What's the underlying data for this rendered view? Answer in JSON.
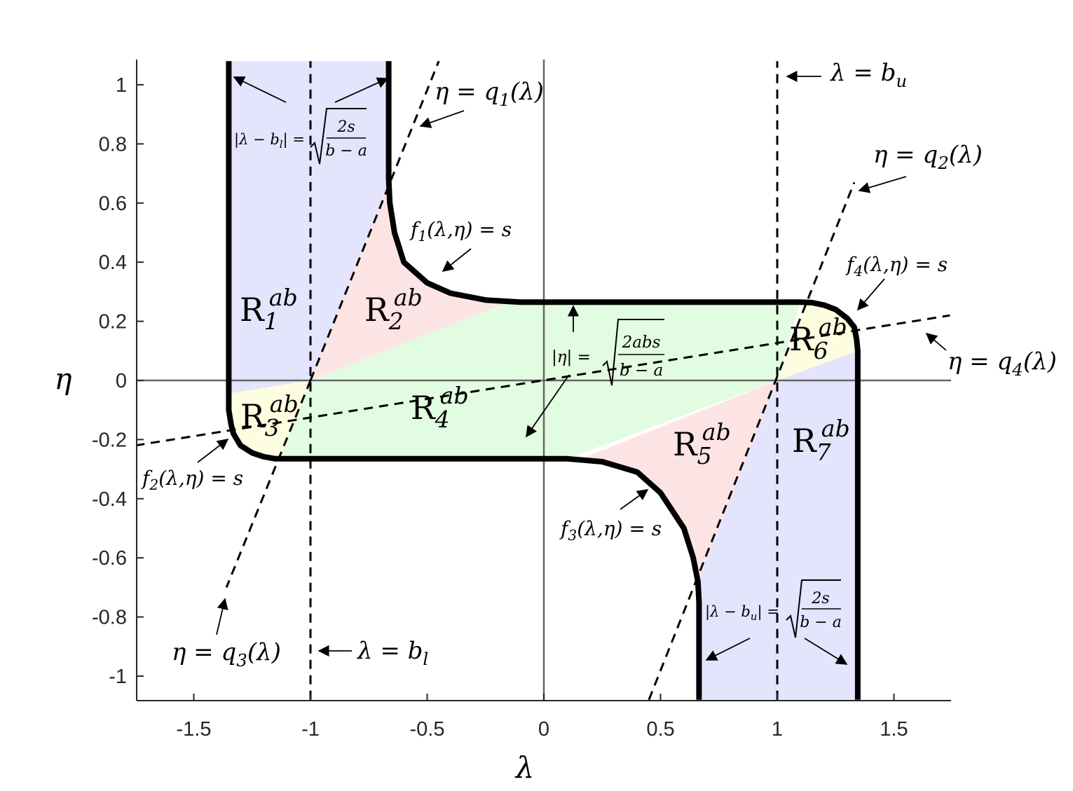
{
  "chart_data": {
    "type": "line",
    "xlabel": "λ",
    "ylabel": "η",
    "xlim": [
      -1.75,
      1.75
    ],
    "ylim": [
      -1.08,
      1.08
    ],
    "x_ticks": [
      "-1.5",
      "-1",
      "-0.5",
      "0",
      "0.5",
      "1",
      "1.5"
    ],
    "y_ticks": [
      "1",
      "0.8",
      "0.6",
      "0.4",
      "0.2",
      "0",
      "-0.2",
      "-0.4",
      "-0.6",
      "-0.8",
      "-1"
    ],
    "x_tick_values": [
      -1.5,
      -1,
      -0.5,
      0,
      0.5,
      1,
      1.5
    ],
    "y_tick_values": [
      1,
      0.8,
      0.6,
      0.4,
      0.2,
      0,
      -0.2,
      -0.4,
      -0.6,
      -0.8,
      -1
    ],
    "parameters": {
      "b_l": -1,
      "b_u": 1,
      "eta_level": 0.265,
      "half_width": 0.335
    },
    "boundary_upper": {
      "x": [
        -1.35,
        -1.35,
        -1.35,
        -1.34,
        -1.33,
        -1.3,
        -1.25,
        -1.2,
        -1.15,
        -0.4,
        -0.2,
        0.1,
        0.25,
        0.4,
        0.5,
        0.6,
        0.64,
        0.66,
        0.665,
        0.665
      ],
      "y": [
        1.08,
        0.0,
        -0.1,
        -0.15,
        -0.18,
        -0.22,
        -0.245,
        -0.258,
        -0.265,
        -0.265,
        -0.265,
        -0.265,
        -0.275,
        -0.31,
        -0.38,
        -0.5,
        -0.6,
        -0.68,
        -0.75,
        -1.08
      ]
    },
    "boundary_lower": {
      "x": [
        -0.665,
        -0.665,
        -0.66,
        -0.64,
        -0.6,
        -0.5,
        -0.4,
        -0.25,
        -0.1,
        1.1,
        1.15,
        1.2,
        1.25,
        1.3,
        1.33,
        1.34,
        1.345,
        1.345
      ],
      "y": [
        1.08,
        0.68,
        0.6,
        0.5,
        0.4,
        0.33,
        0.295,
        0.272,
        0.265,
        0.265,
        0.263,
        0.255,
        0.24,
        0.21,
        0.18,
        0.14,
        0.1,
        -1.08
      ]
    },
    "lines": [
      {
        "name": "η = q1(λ)",
        "x": [
          -1,
          -0.45
        ],
        "y": [
          0,
          1.08
        ]
      },
      {
        "name": "η = q3(λ)",
        "x": [
          -1,
          -1.36
        ],
        "y": [
          0,
          -0.7
        ]
      },
      {
        "name": "η = q2(λ)",
        "x": [
          0.45,
          1.33
        ],
        "y": [
          -1.08,
          0.67
        ]
      },
      {
        "name": "η = q4(λ)",
        "x": [
          -1.75,
          1.74
        ],
        "y": [
          -0.22,
          0.22
        ]
      },
      {
        "name": "λ = b_l",
        "x": [
          -1,
          -1
        ],
        "y": [
          -1.08,
          1.08
        ]
      },
      {
        "name": "λ = b_u",
        "x": [
          1,
          1
        ],
        "y": [
          -1.08,
          1.08
        ]
      }
    ],
    "annotations": {
      "q1": "η = q",
      "q1_sub": "1",
      "q1_tail": "(λ)",
      "q2": "η = q",
      "q2_sub": "2",
      "q2_tail": "(λ)",
      "q3": "η = q",
      "q3_sub": "3",
      "q3_tail": "(λ)",
      "q4": "η = q",
      "q4_sub": "4",
      "q4_tail": "(λ)",
      "bu": "λ = b",
      "bu_sub": "u",
      "bl": "λ = b",
      "bl_sub": "l",
      "f1": "f",
      "f1_sub": "1",
      "f1_tail": "(λ,η) = s",
      "f2": "f",
      "f2_sub": "2",
      "f2_tail": "(λ,η) = s",
      "f3": "f",
      "f3_sub": "3",
      "f3_tail": "(λ,η) = s",
      "f4": "f",
      "f4_sub": "4",
      "f4_tail": "(λ,η) = s",
      "abs_bl": "|λ − b",
      "abs_bl_sub": "l",
      "abs_bl_tail": "| =",
      "abs_bu": "|λ − b",
      "abs_bu_sub": "u",
      "abs_bu_tail": "| =",
      "abs_eta": "|η| =",
      "frac_2s_num": "2s",
      "frac_den": "b − a",
      "frac_2abs_num": "2abs"
    },
    "regions": [
      {
        "label": "R",
        "sub": "1",
        "sup": "ab",
        "color": "#e4e4fc"
      },
      {
        "label": "R",
        "sub": "2",
        "sup": "ab",
        "color": "#fde4e4"
      },
      {
        "label": "R",
        "sub": "3",
        "sup": "ab",
        "color": "#fdfde0"
      },
      {
        "label": "R",
        "sub": "4",
        "sup": "ab",
        "color": "#e2fce2"
      },
      {
        "label": "R",
        "sub": "5",
        "sup": "ab",
        "color": "#fde4e4"
      },
      {
        "label": "R",
        "sub": "6",
        "sup": "ab",
        "color": "#fdfde0"
      },
      {
        "label": "R",
        "sub": "7",
        "sup": "ab",
        "color": "#e4e4fc"
      }
    ],
    "grid": false
  }
}
